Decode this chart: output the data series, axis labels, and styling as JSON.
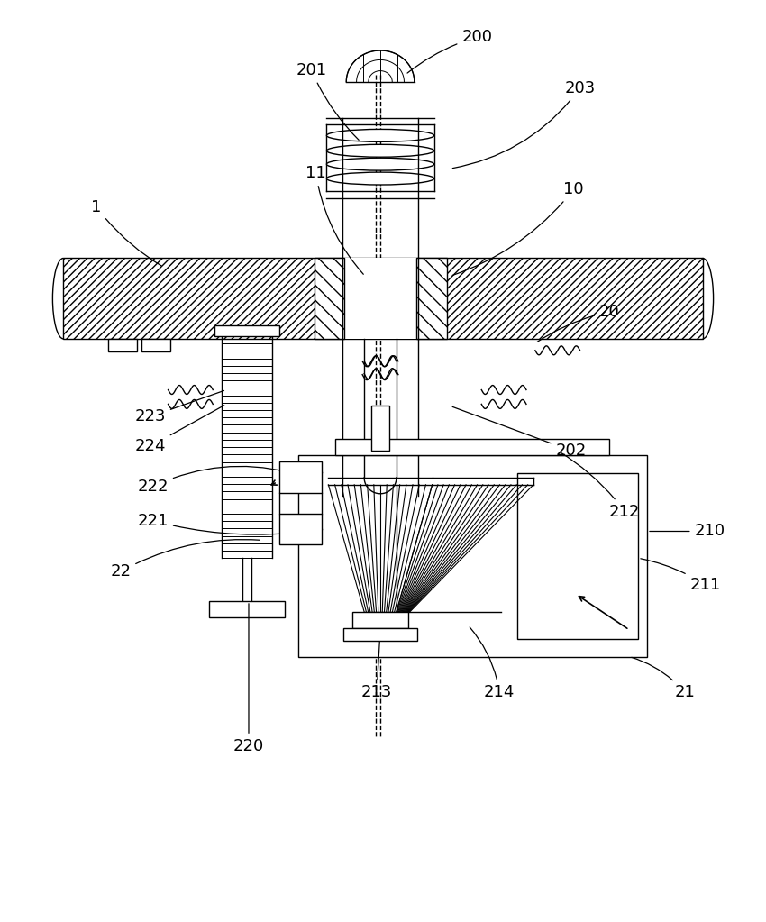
{
  "bg_color": "#ffffff",
  "line_color": "#000000",
  "fig_width": 8.5,
  "fig_height": 10.23,
  "lw": 1.2,
  "label_fs": 13
}
